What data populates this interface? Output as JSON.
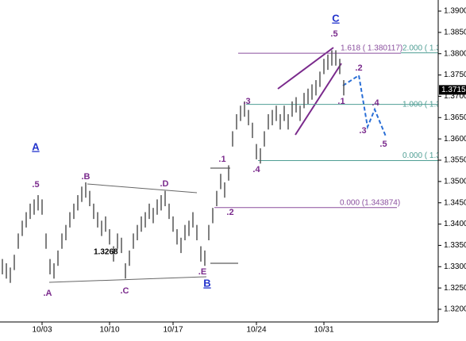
{
  "chart_data": {
    "type": "ohlc",
    "categories": [
      null,
      null,
      null,
      null,
      null,
      null,
      null,
      null,
      null,
      null,
      "10/03",
      null,
      null,
      null,
      null,
      null,
      null,
      null,
      null,
      null,
      null,
      null,
      null,
      null,
      null,
      null,
      null,
      "10/10",
      null,
      null,
      null,
      null,
      null,
      null,
      null,
      null,
      null,
      null,
      null,
      null,
      null,
      null,
      null,
      "10/17",
      null,
      null,
      null,
      null,
      null,
      null,
      null,
      null,
      null,
      null,
      null,
      null,
      null,
      null,
      null,
      null,
      null,
      null,
      null,
      null,
      "10/24",
      null,
      null,
      null,
      null,
      null,
      null,
      null,
      null,
      null,
      null,
      null,
      null,
      null,
      null,
      null,
      null,
      "10/31",
      null,
      null,
      null,
      null,
      null
    ],
    "high": [
      1.3318,
      1.3308,
      1.3298,
      1.3328,
      1.3378,
      1.3408,
      1.3428,
      1.3448,
      1.3458,
      1.3468,
      1.3458,
      1.3378,
      1.3318,
      1.3308,
      1.3338,
      1.3378,
      1.3398,
      1.3428,
      1.3448,
      1.3468,
      1.3488,
      1.3498,
      1.3478,
      1.3448,
      1.3428,
      1.3408,
      1.3418,
      1.3388,
      1.3348,
      1.3378,
      1.3368,
      1.3308,
      1.3338,
      1.3378,
      1.3398,
      1.3418,
      1.3428,
      1.3448,
      1.3438,
      1.3458,
      1.3468,
      1.3478,
      1.3448,
      1.3418,
      1.3388,
      1.3368,
      1.3398,
      1.3408,
      1.3428,
      1.3398,
      1.3348,
      1.3338,
      1.3398,
      1.3438,
      1.3478,
      1.3518,
      1.3498,
      1.3538,
      1.3618,
      1.3658,
      1.3678,
      1.3688,
      1.3668,
      1.3638,
      1.3588,
      1.3578,
      1.3618,
      1.3658,
      1.3668,
      1.3678,
      1.3658,
      1.3678,
      1.3658,
      1.3688,
      1.3698,
      1.3678,
      1.3708,
      1.3718,
      1.3728,
      1.3738,
      1.3758,
      1.3788,
      1.3798,
      1.3808,
      1.3808,
      1.3788,
      1.3738
    ],
    "low": [
      1.3282,
      1.3272,
      1.3262,
      1.3292,
      1.3342,
      1.3372,
      1.3392,
      1.3412,
      1.3422,
      1.3432,
      1.3422,
      1.3342,
      1.3282,
      1.3272,
      1.3302,
      1.3342,
      1.3362,
      1.3392,
      1.3412,
      1.3432,
      1.3452,
      1.3462,
      1.3442,
      1.3412,
      1.3392,
      1.3372,
      1.3382,
      1.3352,
      1.3312,
      1.3342,
      1.3332,
      1.3272,
      1.3302,
      1.3342,
      1.3362,
      1.3382,
      1.3392,
      1.3412,
      1.3402,
      1.3422,
      1.3432,
      1.3442,
      1.3412,
      1.3382,
      1.3352,
      1.3332,
      1.3362,
      1.3372,
      1.3392,
      1.3362,
      1.3312,
      1.3302,
      1.3362,
      1.3402,
      1.3442,
      1.3482,
      1.3462,
      1.3502,
      1.3582,
      1.3622,
      1.3642,
      1.3652,
      1.3632,
      1.3602,
      1.3552,
      1.3542,
      1.3582,
      1.3622,
      1.3632,
      1.3642,
      1.3622,
      1.3642,
      1.3622,
      1.3652,
      1.3662,
      1.3642,
      1.3672,
      1.3682,
      1.3692,
      1.3702,
      1.3722,
      1.3752,
      1.3762,
      1.3772,
      1.3772,
      1.3752,
      1.3702
    ],
    "color": "#555555",
    "ylim": [
      1.3175,
      1.3925
    ],
    "yticks": [
      {
        "value": 1.32,
        "label": "1.3200"
      },
      {
        "value": 1.325,
        "label": "1.3250"
      },
      {
        "value": 1.33,
        "label": "1.3300"
      },
      {
        "value": 1.335,
        "label": "1.3350"
      },
      {
        "value": 1.34,
        "label": "1.3400"
      },
      {
        "value": 1.345,
        "label": "1.3450"
      },
      {
        "value": 1.35,
        "label": "1.3500"
      },
      {
        "value": 1.355,
        "label": "1.3550"
      },
      {
        "value": 1.36,
        "label": "1.3600"
      },
      {
        "value": 1.365,
        "label": "1.3650"
      },
      {
        "value": 1.37,
        "label": "1.3700"
      },
      {
        "value": 1.375,
        "label": "1.3750"
      },
      {
        "value": 1.38,
        "label": "1.3800"
      },
      {
        "value": 1.385,
        "label": "1.3850"
      },
      {
        "value": 1.39,
        "label": "1.3900"
      }
    ],
    "last_price": {
      "value": 1.3715,
      "label": "1.3715"
    },
    "levels": [
      {
        "label": "1.618 ( 1.380117)",
        "value": 1.380117,
        "color": "#8a4f9e"
      },
      {
        "label": "2.000 ( 1.3",
        "value": 1.3802,
        "color": "#4f9e94"
      },
      {
        "label": "1.000 ( 1.3",
        "value": 1.3681,
        "color": "#4f9e94"
      },
      {
        "label": "0.000 ( 1.3",
        "value": 1.3549,
        "color": "#4f9e94"
      },
      {
        "label": "0.000 (1.343874)",
        "value": 1.343874,
        "color": "#8a4f9e"
      }
    ],
    "annotations": [
      "A",
      ".5",
      ".A",
      ".B",
      "1.3268",
      ".C",
      ".D",
      ".E",
      "B",
      ".1",
      ".2",
      ".3",
      ".4",
      "C",
      ".5",
      ".1",
      ".2",
      ".4",
      ".3",
      ".5"
    ]
  }
}
